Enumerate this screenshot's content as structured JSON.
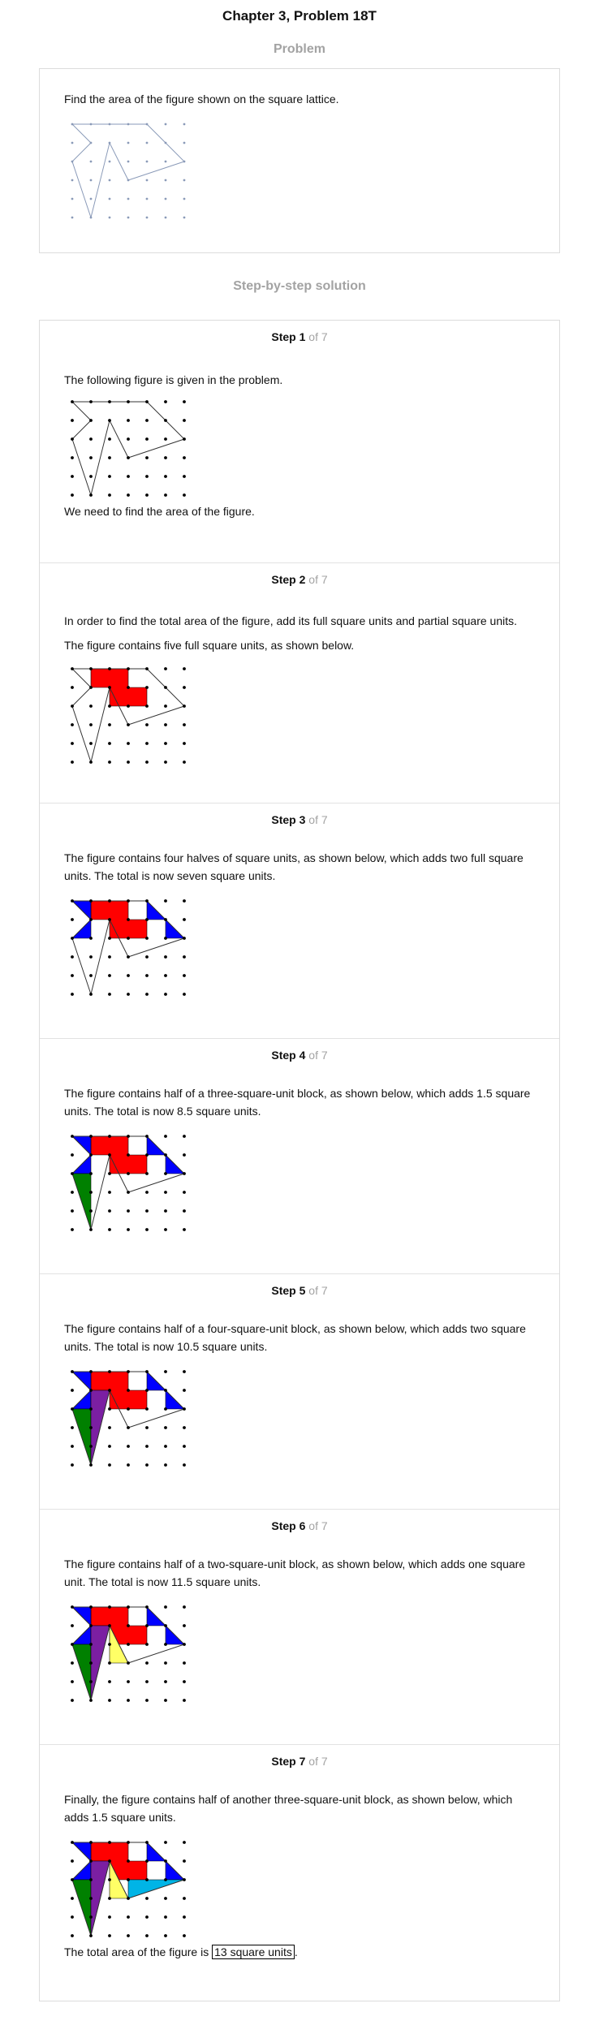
{
  "title": "Chapter 3, Problem 18T",
  "problem": {
    "heading": "Problem",
    "text": "Find the area of the figure shown on the square lattice."
  },
  "solution": {
    "heading": "Step-by-step solution",
    "step_word": "Step",
    "of_total": "of 7",
    "steps": [
      {
        "number": "1",
        "texts": [
          "The following figure is given in the problem.",
          "We need to find the area of the figure."
        ]
      },
      {
        "number": "2",
        "texts": [
          "In order to find the total area of the figure, add its full square units and partial square units.",
          "The figure contains five full square units, as shown below."
        ]
      },
      {
        "number": "3",
        "texts": [
          "The figure contains four halves of square units, as shown below, which adds two full square units. The total is now seven square units."
        ]
      },
      {
        "number": "4",
        "texts": [
          "The figure contains half of a three-square-unit block, as shown below, which adds 1.5 square units. The total is now 8.5 square units."
        ]
      },
      {
        "number": "5",
        "texts": [
          "The figure contains half of a four-square-unit block, as shown below, which adds two square units. The total is now 10.5 square units."
        ]
      },
      {
        "number": "6",
        "texts": [
          "The figure contains half of a two-square-unit block, as shown below, which adds one square unit. The total is now 11.5 square units."
        ]
      },
      {
        "number": "7",
        "texts": [
          "Finally, the figure contains half of another three-square-unit block, as shown below, which adds 1.5 square units."
        ],
        "final_prefix": "The total area of the figure is",
        "final_answer": "13 square units",
        "final_suffix": "."
      }
    ]
  },
  "colors": {
    "full_squares": "#ff0000",
    "half_squares": "#0000ff",
    "three_block_a": "#008000",
    "four_block": "#7b1fa2",
    "two_block": "#ffff66",
    "three_block_b": "#00b4e6",
    "problem_lattice": "#8a9ab8",
    "text_gray": "#a3a3a3"
  }
}
